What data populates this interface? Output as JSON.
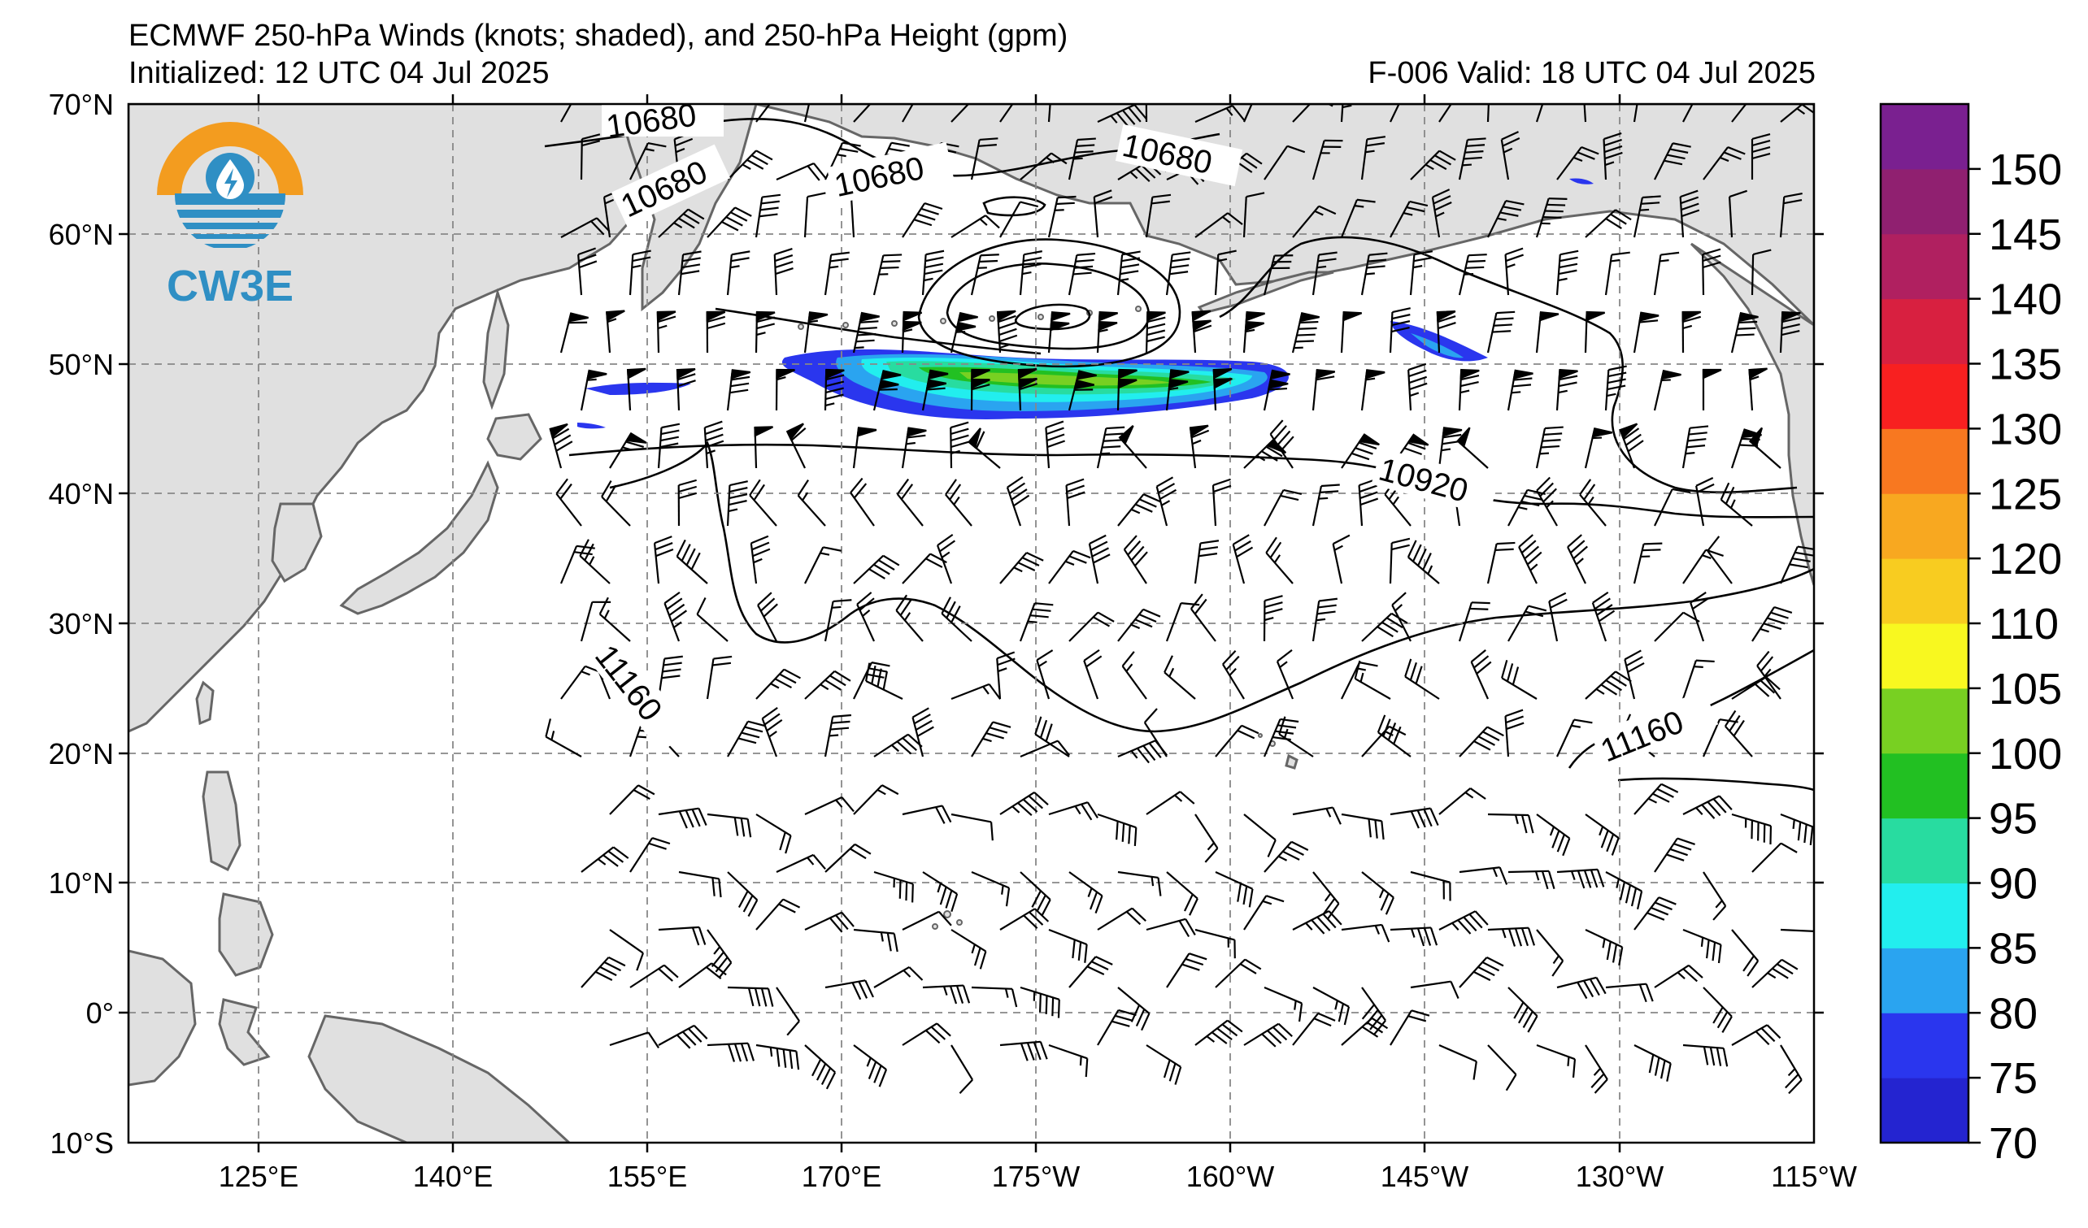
{
  "header": {
    "title": "ECMWF 250-hPa Winds (knots; shaded), and 250-hPa Height (gpm)",
    "initialized": "Initialized: 12 UTC 04 Jul 2025",
    "valid": "F-006  Valid: 18 UTC 04 Jul 2025"
  },
  "logo": {
    "text": "CW3E",
    "colors": {
      "ring": "#f39c1f",
      "blue": "#2f8fc4"
    }
  },
  "map": {
    "lat_labels": [
      "70°N",
      "60°N",
      "50°N",
      "40°N",
      "30°N",
      "20°N",
      "10°N",
      "0°",
      "10°S"
    ],
    "lon_labels": [
      "125°E",
      "140°E",
      "155°E",
      "170°E",
      "175°W",
      "160°W",
      "145°W",
      "130°W",
      "115°W"
    ],
    "contour_labels": [
      {
        "text": "10680"
      },
      {
        "text": "10680"
      },
      {
        "text": "10680"
      },
      {
        "text": "10680"
      },
      {
        "text": "10920"
      },
      {
        "text": "11160"
      },
      {
        "text": "11160"
      }
    ],
    "land_color": "#e0e0e0",
    "coast_color": "#666666",
    "grid_color": "#888888"
  },
  "colorbar": {
    "colors": [
      "#2424d0",
      "#2a36ee",
      "#2aa4f0",
      "#22eeee",
      "#28dca0",
      "#22c022",
      "#78d022",
      "#f8f820",
      "#f8cc20",
      "#f8a820",
      "#f87820",
      "#f82020",
      "#d82040",
      "#b02060",
      "#902070",
      "#7a2090"
    ],
    "tick_labels": [
      "70",
      "75",
      "80",
      "85",
      "90",
      "95",
      "100",
      "105",
      "110",
      "120",
      "125",
      "130",
      "135",
      "140",
      "145",
      "150"
    ]
  }
}
